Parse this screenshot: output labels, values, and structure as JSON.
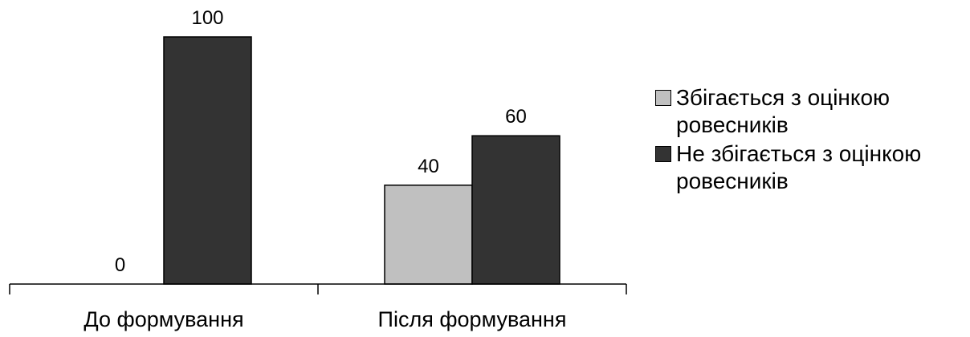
{
  "chart_data": {
    "type": "bar",
    "categories": [
      "До формування",
      "Після формування"
    ],
    "series": [
      {
        "name": "Збігається з оцінкою ровесників",
        "values": [
          0,
          40
        ],
        "color": "#c0c0c0"
      },
      {
        "name": "Не збігається з оцінкою ровесників",
        "values": [
          100,
          60
        ],
        "color": "#333333"
      }
    ],
    "ylim": [
      0,
      100
    ],
    "grid": false,
    "legend": "right",
    "data_labels": true
  }
}
